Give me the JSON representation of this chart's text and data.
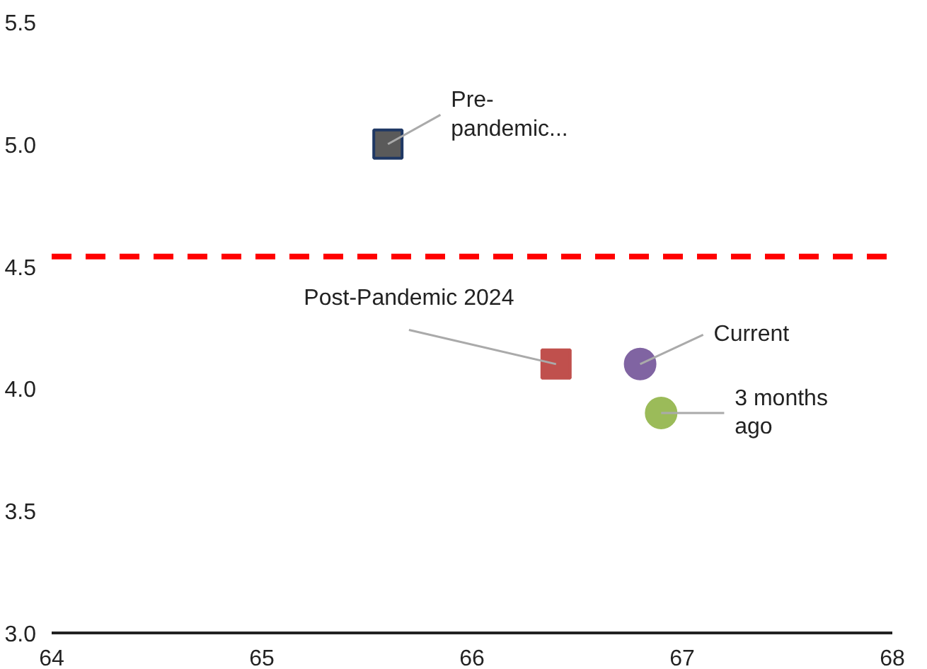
{
  "chart_data": {
    "type": "scatter",
    "xlim": [
      64,
      68
    ],
    "ylim": [
      3,
      5.5
    ],
    "xticks": [
      64,
      65,
      66,
      67,
      68
    ],
    "yticks": [
      {
        "value": 3,
        "label": "3.0"
      },
      {
        "value": 3.5,
        "label": "3.5"
      },
      {
        "value": 4,
        "label": "4.0"
      },
      {
        "value": 4.5,
        "label": "4.5"
      },
      {
        "value": 5,
        "label": "5.0"
      },
      {
        "value": 5.5,
        "label": "5.5"
      }
    ],
    "grid": false,
    "series": [
      {
        "name": "Pre-\npandemic...",
        "color": "#5a5a5a",
        "x": [
          65.6
        ],
        "values": [
          5.0
        ],
        "marker": "square"
      },
      {
        "name": "Post-Pandemic 2024",
        "color": "#c0504d",
        "x": [
          66.4
        ],
        "values": [
          4.1
        ],
        "marker": "square"
      },
      {
        "name": "Current",
        "color": "#8064a2",
        "x": [
          66.8
        ],
        "values": [
          4.1
        ],
        "marker": "circle"
      },
      {
        "name": "3 months\nago",
        "color": "#9bbb59",
        "x": [
          66.9
        ],
        "values": [
          3.9
        ],
        "marker": "circle"
      }
    ],
    "ref_lines": [
      {
        "axis": "y",
        "value": 4.54,
        "label": null,
        "color": "#ff0000",
        "line_style": "dashed"
      }
    ]
  }
}
